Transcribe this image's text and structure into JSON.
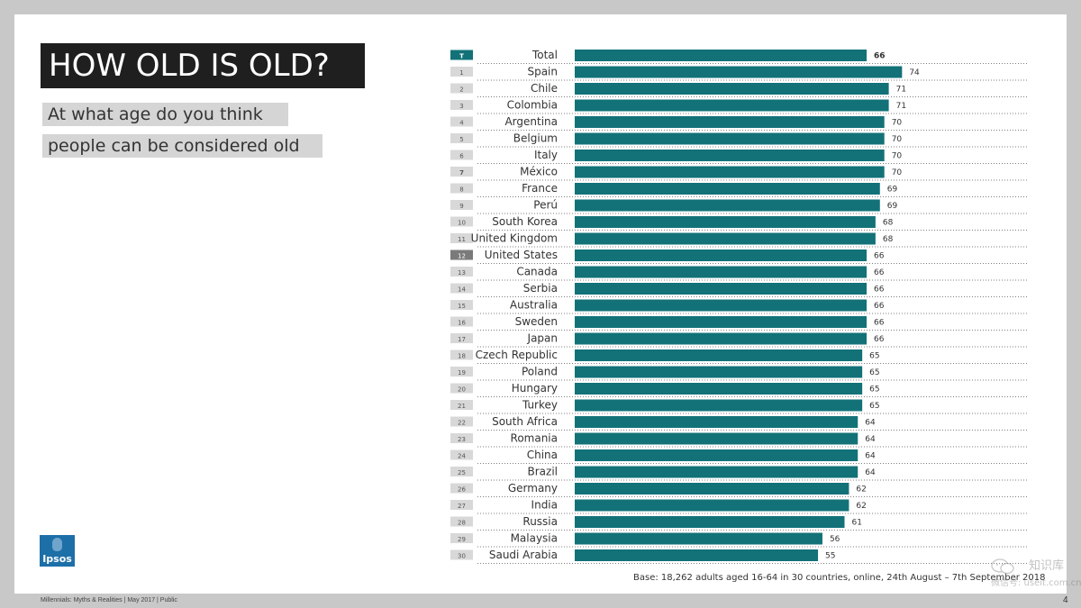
{
  "slide": {
    "title": "HOW OLD IS OLD?",
    "subtitle_line1": "At what age do you think",
    "subtitle_line2": "people can be considered old",
    "footer": "Millennials: Myths & Realities | May 2017 | Public",
    "page_number": "4",
    "base_note": "Base: 18,262 adults aged 16-64 in 30 countries, online, 24th August – 7th September 2018",
    "logo_text": "Ipsos",
    "watermark_title": "知识库",
    "watermark_sub": "微信号: useit.com.cn"
  },
  "colors": {
    "bar": "#127278",
    "rank_default_bg": "#d8d8d8",
    "rank_total_bg": "#127278",
    "rank_highlight_bg": "#7a7a7a",
    "logo": "#1d6fa8"
  },
  "chart_data": {
    "type": "bar",
    "orientation": "horizontal",
    "title": "At what age do you think people can be considered old",
    "xlim": [
      0,
      83
    ],
    "categories": [
      "Total",
      "Spain",
      "Chile",
      "Colombia",
      "Argentina",
      "Belgium",
      "Italy",
      "México",
      "France",
      "Perú",
      "South Korea",
      "United Kingdom",
      "United States",
      "Canada",
      "Serbia",
      "Australia",
      "Sweden",
      "Japan",
      "Czech Republic",
      "Poland",
      "Hungary",
      "Turkey",
      "South Africa",
      "Romania",
      "China",
      "Brazil",
      "Germany",
      "India",
      "Russia",
      "Malaysia",
      "Saudi Arabia"
    ],
    "ranks": [
      "T",
      "1",
      "2",
      "3",
      "4",
      "5",
      "6",
      "7",
      "8",
      "9",
      "10",
      "11",
      "12",
      "13",
      "14",
      "15",
      "16",
      "17",
      "18",
      "19",
      "20",
      "21",
      "22",
      "23",
      "24",
      "25",
      "26",
      "27",
      "28",
      "29",
      "30"
    ],
    "values": [
      66,
      74,
      71,
      71,
      70,
      70,
      70,
      70,
      69,
      69,
      68,
      68,
      66,
      66,
      66,
      66,
      66,
      66,
      65,
      65,
      65,
      65,
      64,
      64,
      64,
      64,
      62,
      62,
      61,
      56,
      55
    ],
    "highlight_rank": "12",
    "bold_rank": "7"
  }
}
